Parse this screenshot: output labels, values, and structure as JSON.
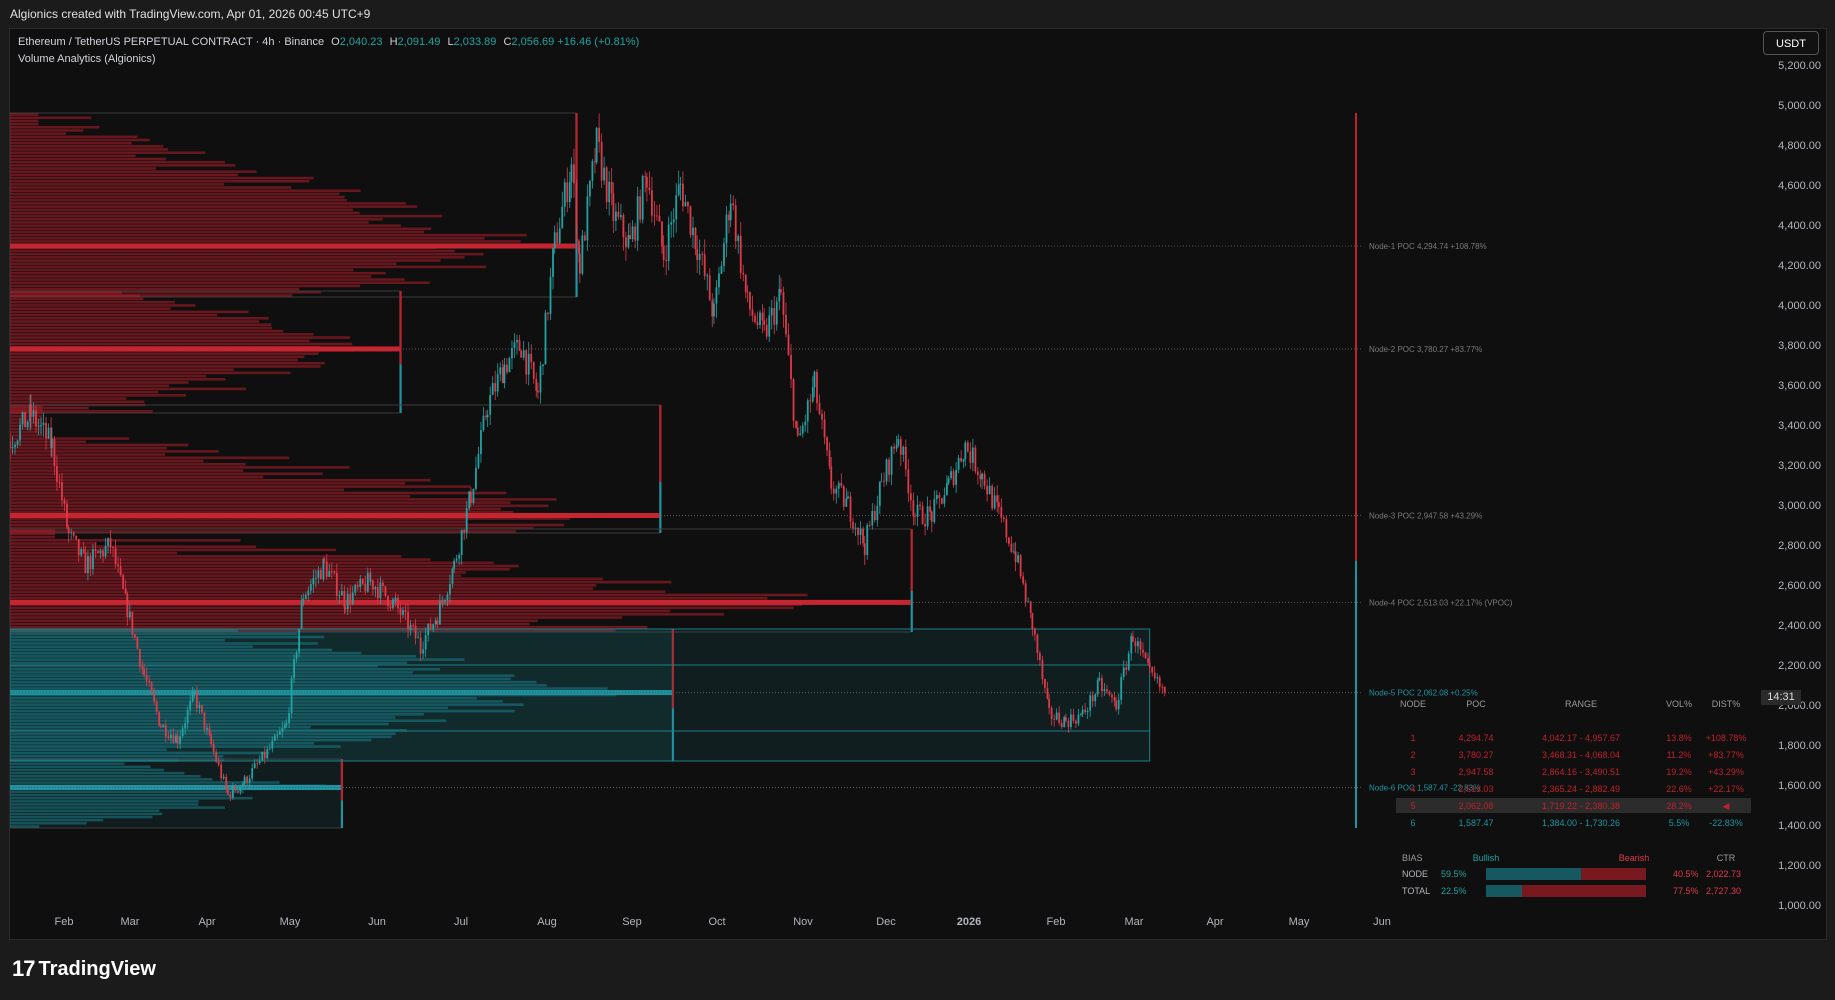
{
  "header": {
    "attribution": "Algionics created with TradingView.com, Apr 01, 2026 00:45 UTC+9"
  },
  "legend": {
    "symbol": "Ethereum / TetherUS PERPETUAL CONTRACT · 4h · Binance",
    "open_label": "O",
    "open": "2,040.23",
    "high_label": "H",
    "high": "2,091.49",
    "low_label": "L",
    "low": "2,033.89",
    "close_label": "C",
    "close": "2,056.69",
    "change": "+16.46 (+0.81%)",
    "indicator": "Volume Analytics (Algionics)"
  },
  "currency_button": "USDT",
  "countdown": "14:31",
  "brand": {
    "logo_glyph": "17",
    "name": "TradingView"
  },
  "colors": {
    "background": "#0f0f0f",
    "up": "#22a3a3",
    "down": "#e0394a",
    "profile_red": "#b01f2a",
    "profile_teal": "#1a7f8a"
  },
  "chart_data": {
    "type": "candlestick",
    "x_ticks": [
      "Feb",
      "Mar",
      "Apr",
      "May",
      "Jun",
      "Jul",
      "Aug",
      "Sep",
      "Oct",
      "Nov",
      "Dec",
      "2026",
      "Feb",
      "Mar",
      "Apr",
      "May",
      "Jun"
    ],
    "y_ticks": [
      "5,200.00",
      "5,000.00",
      "4,800.00",
      "4,600.00",
      "4,400.00",
      "4,200.00",
      "4,000.00",
      "3,800.00",
      "3,600.00",
      "3,400.00",
      "3,200.00",
      "3,000.00",
      "2,800.00",
      "2,600.00",
      "2,400.00",
      "2,200.00",
      "2,000.00",
      "1,800.00",
      "1,600.00",
      "1,400.00",
      "1,200.00",
      "1,000.00"
    ],
    "ylim": [
      1000,
      5200
    ],
    "price_path": [
      [
        0,
        3320
      ],
      [
        5,
        3450
      ],
      [
        10,
        3300
      ],
      [
        14,
        2850
      ],
      [
        18,
        2700
      ],
      [
        24,
        2800
      ],
      [
        28,
        2480
      ],
      [
        32,
        2150
      ],
      [
        36,
        1900
      ],
      [
        40,
        1830
      ],
      [
        44,
        2050
      ],
      [
        48,
        1800
      ],
      [
        52,
        1550
      ],
      [
        56,
        1620
      ],
      [
        62,
        1780
      ],
      [
        66,
        1900
      ],
      [
        70,
        2550
      ],
      [
        75,
        2700
      ],
      [
        80,
        2520
      ],
      [
        86,
        2620
      ],
      [
        92,
        2500
      ],
      [
        98,
        2300
      ],
      [
        102,
        2450
      ],
      [
        106,
        2700
      ],
      [
        110,
        3050
      ],
      [
        114,
        3500
      ],
      [
        118,
        3700
      ],
      [
        122,
        3800
      ],
      [
        126,
        3550
      ],
      [
        130,
        4300
      ],
      [
        134,
        4700
      ],
      [
        136,
        4200
      ],
      [
        140,
        4800
      ],
      [
        144,
        4450
      ],
      [
        148,
        4300
      ],
      [
        152,
        4650
      ],
      [
        156,
        4250
      ],
      [
        160,
        4600
      ],
      [
        164,
        4300
      ],
      [
        168,
        3950
      ],
      [
        172,
        4550
      ],
      [
        176,
        4000
      ],
      [
        180,
        3850
      ],
      [
        184,
        4050
      ],
      [
        188,
        3300
      ],
      [
        192,
        3600
      ],
      [
        196,
        3100
      ],
      [
        200,
        3000
      ],
      [
        204,
        2800
      ],
      [
        208,
        3100
      ],
      [
        212,
        3350
      ],
      [
        216,
        2950
      ],
      [
        220,
        2950
      ],
      [
        224,
        3100
      ],
      [
        228,
        3300
      ],
      [
        232,
        3150
      ],
      [
        236,
        2950
      ],
      [
        240,
        2750
      ],
      [
        244,
        2400
      ],
      [
        248,
        1950
      ],
      [
        252,
        1920
      ],
      [
        256,
        1950
      ],
      [
        260,
        2100
      ],
      [
        264,
        2000
      ],
      [
        268,
        2350
      ],
      [
        272,
        2150
      ],
      [
        276,
        2050
      ]
    ],
    "profile_blocks": [
      {
        "top": 4960,
        "bottom": 4040,
        "right_day": 135,
        "poc": 4294.74,
        "color": "red"
      },
      {
        "top": 4070,
        "bottom": 3460,
        "right_day": 93,
        "poc": 3780.27,
        "color": "red"
      },
      {
        "top": 3500,
        "bottom": 2860,
        "right_day": 155,
        "poc": 2947.58,
        "color": "red"
      },
      {
        "top": 2880,
        "bottom": 2365,
        "right_day": 215,
        "poc": 2513.03,
        "color": "red"
      },
      {
        "top": 2380,
        "bottom": 1720,
        "right_day": 158,
        "poc": 2062.08,
        "color": "teal"
      },
      {
        "top": 1730,
        "bottom": 1385,
        "right_day": 79,
        "poc": 1587.47,
        "color": "teal"
      }
    ],
    "nodes": [
      {
        "label": "Node-1 POC 4,294.74 +108.78%",
        "price": 4294.74
      },
      {
        "label": "Node-2 POC 3,780.27 +83.77%",
        "price": 3780.27
      },
      {
        "label": "Node-3 POC 2,947.58 +43.29%",
        "price": 2947.58
      },
      {
        "label": "Node-4 POC 2,513.03 +22.17% (VPOC)",
        "price": 2513.03
      },
      {
        "label": "Node-5 POC 2,062.08 +0.25%",
        "price": 2062.08
      },
      {
        "label": "Node-6 POC 1,587.47 -22.83%",
        "price": 1587.47
      }
    ],
    "table": {
      "headers": [
        "NODE",
        "POC",
        "RANGE",
        "VOL%",
        "DIST%"
      ],
      "rows": [
        [
          "1",
          "4,294.74",
          "4,042.17 - 4,957.67",
          "13.8%",
          "+108.78%"
        ],
        [
          "2",
          "3,780.27",
          "3,468.31 - 4,068.04",
          "11.2%",
          "+83.77%"
        ],
        [
          "3",
          "2,947.58",
          "2,864.16 - 3,490.51",
          "19.2%",
          "+43.29%"
        ],
        [
          "4",
          "2,513.03",
          "2,365.24 - 2,882.49",
          "22.6%",
          "+22.17%"
        ],
        [
          "5",
          "2,062.08",
          "1,719.22 - 2,380.38",
          "28.2%",
          "◀"
        ],
        [
          "6",
          "1,587.47",
          "1,384.00 - 1,730.26",
          "5.5%",
          "-22.83%"
        ]
      ]
    },
    "bias": {
      "headers": [
        "BIAS",
        "Bullish",
        "Bearish",
        "CTR"
      ],
      "rows": [
        {
          "label": "NODE",
          "bull": "59.5%",
          "bear": "40.5%",
          "ctr": "2,022.73",
          "bull_frac": 0.595
        },
        {
          "label": "TOTAL",
          "bull": "22.5%",
          "bear": "77.5%",
          "ctr": "2,727.30",
          "bull_frac": 0.225
        }
      ]
    }
  }
}
